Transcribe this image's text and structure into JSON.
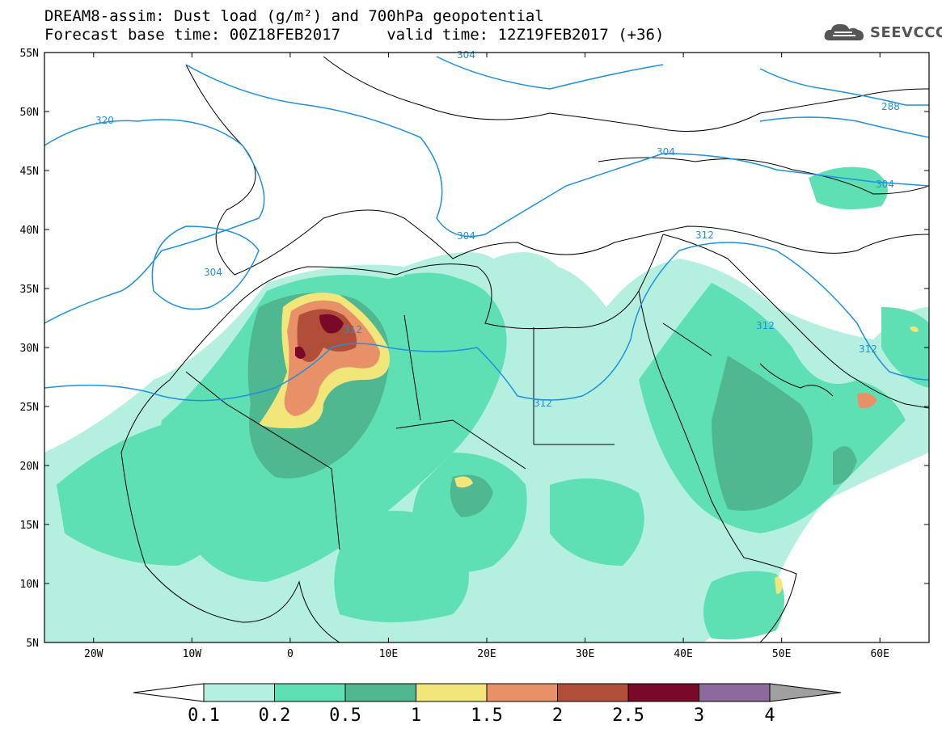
{
  "title": {
    "line1": "DREAM8-assim: Dust load (g/m²) and 700hPa geopotential",
    "line2": "Forecast base time: 00Z18FEB2017     valid time: 12Z19FEB2017 (+36)"
  },
  "logo": {
    "icon": "cloud-icon",
    "text": "SEEVCCC"
  },
  "axes": {
    "lat_ticks": [
      "55N",
      "50N",
      "45N",
      "40N",
      "35N",
      "30N",
      "25N",
      "20N",
      "15N",
      "10N",
      "5N"
    ],
    "lon_ticks": [
      "20W",
      "10W",
      "0",
      "10E",
      "20E",
      "30E",
      "40E",
      "50E",
      "60E"
    ],
    "lat_range": [
      5,
      55
    ],
    "lon_range": [
      -25,
      65
    ]
  },
  "contours": {
    "color": "#1e90e0",
    "labels": [
      "320",
      "304",
      "304",
      "304",
      "312",
      "312",
      "312",
      "312",
      "304",
      "304",
      "288",
      "312"
    ]
  },
  "colorbar": {
    "levels": [
      "0.1",
      "0.2",
      "0.5",
      "1",
      "1.5",
      "2",
      "2.5",
      "3",
      "4"
    ],
    "colors": [
      "#ffffff",
      "#b4efe0",
      "#5fe0b4",
      "#4fb890",
      "#f2e57a",
      "#e89068",
      "#b04e3a",
      "#7a0828",
      "#8c6a9e",
      "#a0a0a0"
    ]
  }
}
